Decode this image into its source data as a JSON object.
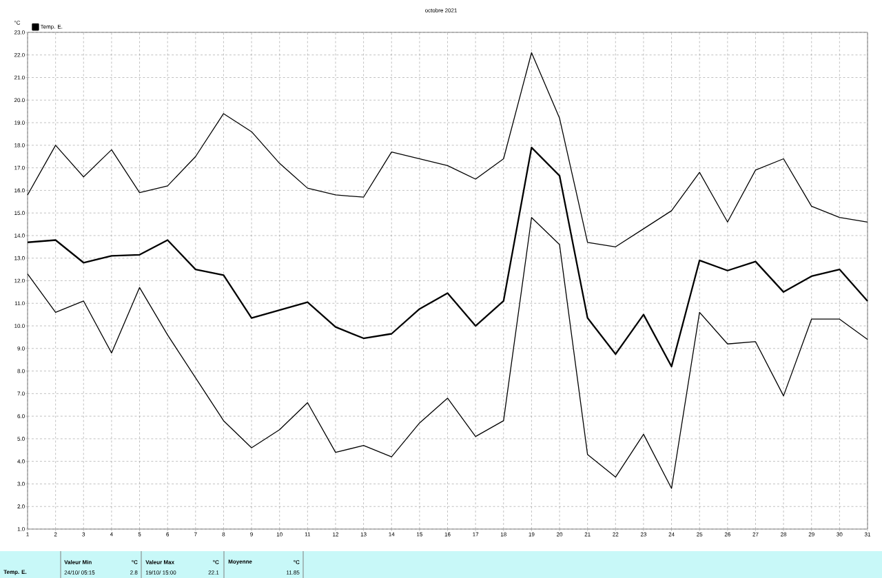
{
  "chart_data": {
    "type": "line",
    "title": "octobre 2021",
    "ylabel": "°C",
    "legend": "top left",
    "grid": true,
    "marker": "none",
    "line_style": "solid",
    "x": [
      1,
      2,
      3,
      4,
      5,
      6,
      7,
      8,
      9,
      10,
      11,
      12,
      13,
      14,
      15,
      16,
      17,
      18,
      19,
      20,
      21,
      22,
      23,
      24,
      25,
      26,
      27,
      28,
      29,
      30,
      31
    ],
    "xlim": [
      1,
      31
    ],
    "xticks": [
      1,
      2,
      3,
      4,
      5,
      6,
      7,
      8,
      9,
      10,
      11,
      12,
      13,
      14,
      15,
      16,
      17,
      18,
      19,
      20,
      21,
      22,
      23,
      24,
      25,
      26,
      27,
      28,
      29,
      30,
      31
    ],
    "ylim": [
      1,
      23
    ],
    "yticks": [
      {
        "value": 1,
        "label": "1.0"
      },
      {
        "value": 2,
        "label": "2.0"
      },
      {
        "value": 3,
        "label": "3.0"
      },
      {
        "value": 4,
        "label": "4.0"
      },
      {
        "value": 5,
        "label": "5.0"
      },
      {
        "value": 6,
        "label": "6.0"
      },
      {
        "value": 7,
        "label": "7.0"
      },
      {
        "value": 8,
        "label": "8.0"
      },
      {
        "value": 9,
        "label": "9.0"
      },
      {
        "value": 10,
        "label": "10.0"
      },
      {
        "value": 11,
        "label": "11.0"
      },
      {
        "value": 12,
        "label": "12.0"
      },
      {
        "value": 13,
        "label": "13.0"
      },
      {
        "value": 14,
        "label": "14.0"
      },
      {
        "value": 15,
        "label": "15.0"
      },
      {
        "value": 16,
        "label": "16.0"
      },
      {
        "value": 17,
        "label": "17.0"
      },
      {
        "value": 18,
        "label": "18.0"
      },
      {
        "value": 19,
        "label": "19.0"
      },
      {
        "value": 20,
        "label": "20.0"
      },
      {
        "value": 21,
        "label": "21.0"
      },
      {
        "value": 22,
        "label": "22.0"
      },
      {
        "value": 23,
        "label": "23.0"
      }
    ],
    "series": [
      {
        "color": "#000000",
        "values": [
          15.8,
          18.0,
          16.6,
          17.8,
          15.9,
          16.2,
          17.5,
          19.4,
          18.6,
          17.2,
          16.1,
          15.8,
          15.7,
          17.7,
          17.4,
          17.1,
          16.5,
          17.4,
          22.1,
          19.2,
          13.7,
          13.5,
          14.3,
          15.1,
          16.8,
          14.6,
          16.9,
          17.4,
          15.3,
          14.8,
          14.6
        ]
      },
      {
        "name": "Temp. E.",
        "color": "#000000",
        "values": [
          13.7,
          13.8,
          12.8,
          13.1,
          13.15,
          13.8,
          12.5,
          12.25,
          10.35,
          10.7,
          11.05,
          9.95,
          9.45,
          9.65,
          10.75,
          11.45,
          10.0,
          11.1,
          17.9,
          16.65,
          10.35,
          8.75,
          10.5,
          8.2,
          12.9,
          12.45,
          12.85,
          11.5,
          12.2,
          12.5,
          11.1
        ]
      },
      {
        "color": "#000000",
        "values": [
          12.3,
          10.6,
          11.1,
          8.8,
          11.7,
          9.6,
          7.7,
          5.8,
          4.6,
          5.4,
          6.6,
          4.4,
          4.7,
          4.2,
          5.7,
          6.8,
          5.1,
          5.8,
          14.8,
          13.6,
          4.3,
          3.3,
          5.2,
          2.8,
          10.6,
          9.2,
          9.3,
          6.9,
          10.3,
          10.3,
          9.4
        ]
      }
    ],
    "annotations": [
      "Temp. E.",
      "Valeur Min",
      "°C",
      "24/10/ 05:15",
      "2.8",
      "Valeur Max",
      "°C",
      "19/10/ 15:00",
      "22.1",
      "Moyenne",
      "°C",
      "11.85"
    ]
  }
}
